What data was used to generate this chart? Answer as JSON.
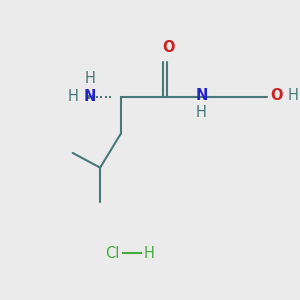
{
  "bg_color": "#ebebeb",
  "bond_color": "#4a7878",
  "N_color": "#2222cc",
  "O_color": "#cc2222",
  "Cl_color": "#44aa44",
  "H_color": "#4a7878",
  "figsize": [
    3.0,
    3.0
  ],
  "dpi": 100,
  "xlim": [
    0,
    10
  ],
  "ylim": [
    0,
    10
  ],
  "chiral_x": 4.3,
  "chiral_y": 6.8,
  "amide_x": 5.85,
  "amide_y": 6.8,
  "O_x": 5.85,
  "O_y": 8.0,
  "NH_x": 6.95,
  "NH_y": 6.8,
  "e1_x": 7.95,
  "e1_y": 6.8,
  "e2_x": 8.95,
  "e2_y": 6.8,
  "OH_x": 9.8,
  "OH_y": 6.8,
  "N_x": 3.05,
  "N_y": 6.8,
  "H_top_x": 3.05,
  "H_top_y": 7.55,
  "H_bot_x": 2.35,
  "H_bot_y": 6.8,
  "m1_x": 4.3,
  "m1_y": 5.55,
  "m2_x": 3.55,
  "m2_y": 4.4,
  "m3_x": 3.55,
  "m3_y": 3.25,
  "m4_x": 2.55,
  "m4_y": 4.9,
  "HCl_x": 4.5,
  "HCl_y": 1.5
}
